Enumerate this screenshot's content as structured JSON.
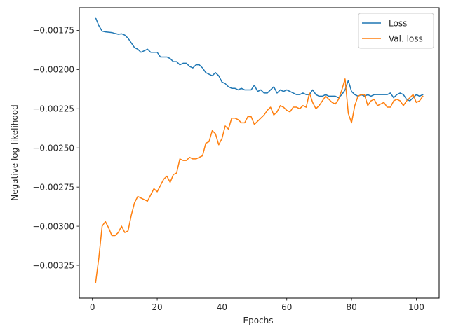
{
  "chart_data": {
    "type": "line",
    "xlabel": "Epochs",
    "ylabel": "Negative log-likelihood",
    "xlim": [
      -4.05,
      107.05
    ],
    "ylim": [
      -0.00346,
      -0.001605
    ],
    "xticks": [
      0,
      20,
      40,
      60,
      80,
      100
    ],
    "yticks": [
      -0.00325,
      -0.003,
      -0.00275,
      -0.0025,
      -0.00225,
      -0.002,
      -0.00175
    ],
    "xtick_labels": [
      "0",
      "20",
      "40",
      "60",
      "80",
      "100"
    ],
    "ytick_labels": [
      "−0.00325",
      "−0.00300",
      "−0.00275",
      "−0.00250",
      "−0.00225",
      "−0.00200",
      "−0.00175"
    ],
    "grid": false,
    "legend": {
      "position": "top-right",
      "entries": [
        "Loss",
        "Val. loss"
      ]
    },
    "x": [
      1,
      2,
      3,
      4,
      5,
      6,
      7,
      8,
      9,
      10,
      11,
      12,
      13,
      14,
      15,
      16,
      17,
      18,
      19,
      20,
      21,
      22,
      23,
      24,
      25,
      26,
      27,
      28,
      29,
      30,
      31,
      32,
      33,
      34,
      35,
      36,
      37,
      38,
      39,
      40,
      41,
      42,
      43,
      44,
      45,
      46,
      47,
      48,
      49,
      50,
      51,
      52,
      53,
      54,
      55,
      56,
      57,
      58,
      59,
      60,
      61,
      62,
      63,
      64,
      65,
      66,
      67,
      68,
      69,
      70,
      71,
      72,
      73,
      74,
      75,
      76,
      77,
      78,
      79,
      80,
      81,
      82,
      83,
      84,
      85,
      86,
      87,
      88,
      89,
      90,
      91,
      92,
      93,
      94,
      95,
      96,
      97,
      98,
      99,
      100,
      101,
      102
    ],
    "series": [
      {
        "name": "Loss",
        "color": "#1f77b4",
        "values": [
          -0.00167,
          -0.00172,
          -0.001755,
          -0.00176,
          -0.001762,
          -0.001764,
          -0.00177,
          -0.001775,
          -0.001772,
          -0.00178,
          -0.0018,
          -0.00183,
          -0.00186,
          -0.00187,
          -0.00189,
          -0.00188,
          -0.00187,
          -0.00189,
          -0.00189,
          -0.00189,
          -0.00192,
          -0.00192,
          -0.00192,
          -0.00193,
          -0.00195,
          -0.00195,
          -0.00197,
          -0.00196,
          -0.00196,
          -0.00198,
          -0.00199,
          -0.00197,
          -0.00197,
          -0.00199,
          -0.00202,
          -0.00203,
          -0.00204,
          -0.00202,
          -0.00204,
          -0.00208,
          -0.00209,
          -0.00211,
          -0.00212,
          -0.00212,
          -0.00213,
          -0.00212,
          -0.00213,
          -0.00213,
          -0.00213,
          -0.0021,
          -0.00214,
          -0.00213,
          -0.00215,
          -0.00215,
          -0.00213,
          -0.00211,
          -0.00215,
          -0.00213,
          -0.00214,
          -0.00213,
          -0.00214,
          -0.00215,
          -0.00216,
          -0.00216,
          -0.00215,
          -0.00216,
          -0.00216,
          -0.00213,
          -0.00216,
          -0.00217,
          -0.00217,
          -0.00216,
          -0.00217,
          -0.00217,
          -0.00217,
          -0.00218,
          -0.00216,
          -0.00213,
          -0.00207,
          -0.00214,
          -0.00216,
          -0.00217,
          -0.00216,
          -0.00217,
          -0.00216,
          -0.00217,
          -0.00216,
          -0.00216,
          -0.00216,
          -0.00216,
          -0.00216,
          -0.00215,
          -0.00218,
          -0.00216,
          -0.00215,
          -0.00216,
          -0.00219,
          -0.0022,
          -0.00218,
          -0.00216,
          -0.00217,
          -0.00216
        ]
      },
      {
        "name": "Val. loss",
        "color": "#ff7f0e",
        "values": [
          -0.00336,
          -0.0032,
          -0.003,
          -0.00297,
          -0.00301,
          -0.00306,
          -0.00306,
          -0.00304,
          -0.003,
          -0.00304,
          -0.00303,
          -0.00293,
          -0.00285,
          -0.00281,
          -0.00282,
          -0.00283,
          -0.00284,
          -0.0028,
          -0.00276,
          -0.00278,
          -0.00274,
          -0.0027,
          -0.00268,
          -0.00272,
          -0.00267,
          -0.00266,
          -0.00257,
          -0.00258,
          -0.00258,
          -0.00256,
          -0.00257,
          -0.00257,
          -0.00256,
          -0.00255,
          -0.00247,
          -0.00246,
          -0.00239,
          -0.00241,
          -0.00248,
          -0.00244,
          -0.00236,
          -0.00238,
          -0.00231,
          -0.00231,
          -0.00232,
          -0.00234,
          -0.00234,
          -0.0023,
          -0.0023,
          -0.00235,
          -0.00233,
          -0.00231,
          -0.00229,
          -0.00226,
          -0.00224,
          -0.00229,
          -0.00227,
          -0.00223,
          -0.00224,
          -0.00226,
          -0.00227,
          -0.00224,
          -0.00224,
          -0.00225,
          -0.00223,
          -0.00224,
          -0.00215,
          -0.00221,
          -0.00225,
          -0.00223,
          -0.0022,
          -0.00217,
          -0.00219,
          -0.00221,
          -0.00222,
          -0.00219,
          -0.00213,
          -0.00206,
          -0.00228,
          -0.00234,
          -0.00223,
          -0.00217,
          -0.00216,
          -0.00216,
          -0.00223,
          -0.0022,
          -0.00219,
          -0.00223,
          -0.00222,
          -0.00221,
          -0.00224,
          -0.00224,
          -0.0022,
          -0.00219,
          -0.0022,
          -0.00223,
          -0.0022,
          -0.00218,
          -0.00216,
          -0.00221,
          -0.0022,
          -0.00217
        ]
      }
    ]
  }
}
